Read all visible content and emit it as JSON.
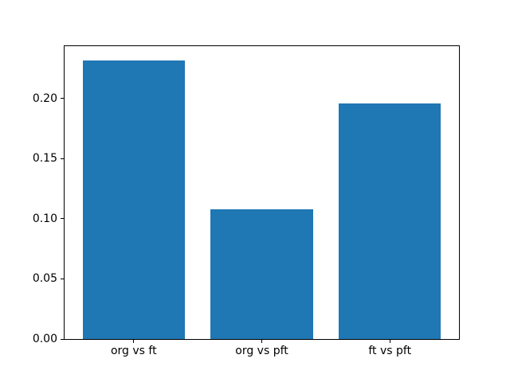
{
  "chart_data": {
    "type": "bar",
    "title": "",
    "xlabel": "",
    "ylabel": "",
    "categories": [
      "org vs ft",
      "org vs pft",
      "ft vs pft"
    ],
    "values": [
      0.232,
      0.108,
      0.196
    ],
    "ylim": [
      0,
      0.2436
    ],
    "ytick_values": [
      0,
      0.05,
      0.1,
      0.15,
      0.2
    ],
    "ytick_labels": [
      "0.00",
      "0.05",
      "0.10",
      "0.15",
      "0.20"
    ],
    "bar_color": "#1f77b4",
    "axis_color": "#000000",
    "background": "#ffffff",
    "grid": false,
    "legend": null,
    "bar_rel_width": 0.8,
    "x_margin_frac": 0.05
  }
}
